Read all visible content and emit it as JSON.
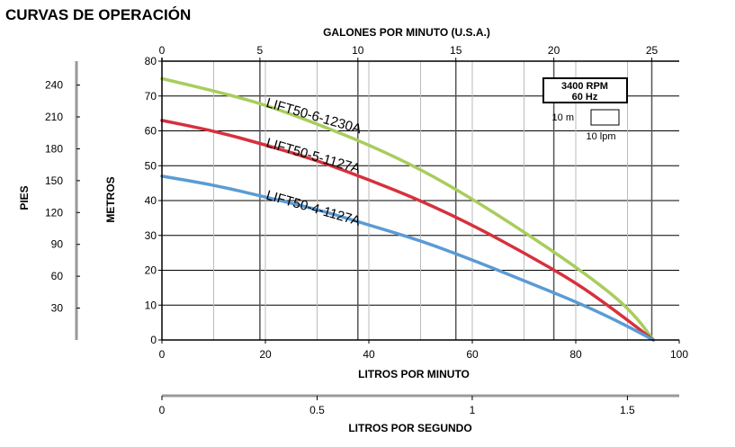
{
  "page_title": "CURVAS DE OPERACIÓN",
  "chart_data": {
    "type": "line",
    "title": "",
    "top_axis": {
      "label": "GALONES POR MINUTO (U.S.A.)",
      "range": [
        0,
        26.4
      ],
      "ticks": [
        0,
        5,
        10,
        15,
        20,
        25
      ]
    },
    "bottom_axis": {
      "label": "LITROS POR MINUTO",
      "range": [
        0,
        100
      ],
      "ticks": [
        0,
        20,
        40,
        60,
        80,
        100
      ]
    },
    "second_bottom_axis": {
      "label": "LITROS POR SEGUNDO",
      "range": [
        0,
        1.667
      ],
      "ticks": [
        0,
        0.5,
        1,
        1.5
      ],
      "tick_labels": [
        "0",
        "0.5",
        "1",
        "1.5"
      ]
    },
    "left_axis_meters": {
      "label": "METROS",
      "range": [
        0,
        80
      ],
      "ticks": [
        0,
        10,
        20,
        30,
        40,
        50,
        60,
        70,
        80
      ]
    },
    "left_axis_feet": {
      "label": "PIES",
      "range": [
        0,
        262.5
      ],
      "ticks": [
        30,
        60,
        90,
        120,
        150,
        180,
        210,
        240
      ]
    },
    "grid": true,
    "legend_box": {
      "rpm": "3400 RPM",
      "hz": "60 Hz",
      "scale_m": "10 m",
      "scale_lpm": "10 lpm"
    },
    "series": [
      {
        "name": "LIFT50-6-1230A",
        "color": "#a8cd5c",
        "x": [
          0,
          10,
          20,
          30,
          40,
          50,
          60,
          70,
          80,
          88,
          92,
          95
        ],
        "y": [
          75,
          71.5,
          67.5,
          62,
          56,
          49,
          40.5,
          31,
          21,
          12,
          6,
          0
        ]
      },
      {
        "name": "LIFT50-5-1127A",
        "color": "#d6313d",
        "x": [
          0,
          10,
          20,
          30,
          40,
          50,
          60,
          70,
          80,
          88,
          95
        ],
        "y": [
          63,
          60,
          56,
          51.5,
          46,
          40,
          33,
          25,
          16.5,
          8,
          0
        ]
      },
      {
        "name": "LIFT50-4-1127A",
        "color": "#5b9bd4",
        "x": [
          0,
          10,
          20,
          30,
          40,
          50,
          60,
          70,
          80,
          88,
          95
        ],
        "y": [
          47,
          44.5,
          41,
          37.5,
          33,
          28.5,
          23,
          17,
          11,
          5.5,
          0
        ]
      }
    ]
  }
}
